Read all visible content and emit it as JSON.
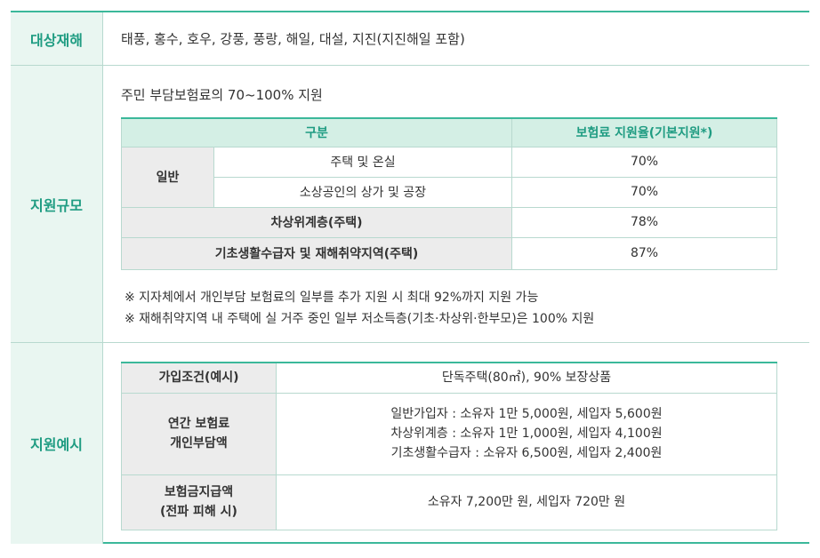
{
  "disasters": {
    "label": "대상재해",
    "value": "태풍, 홍수, 호우, 강풍, 풍랑, 해일, 대설, 지진(지진해일 포함)"
  },
  "support_scale": {
    "label": "지원규모",
    "intro": "주민 부담보험료의 70~100% 지원",
    "table": {
      "header_category": "구분",
      "header_rate": "보험료 지원율(기본지원*)",
      "general_label": "일반",
      "rows": [
        {
          "item": "주택 및 온실",
          "rate": "70%"
        },
        {
          "item": "소상공인의 상가 및 공장",
          "rate": "70%"
        },
        {
          "item": "차상위계층(주택)",
          "rate": "78%"
        },
        {
          "item": "기초생활수급자 및 재해취약지역(주택)",
          "rate": "87%"
        }
      ]
    },
    "notes": [
      "※ 지자체에서 개인부담 보험료의 일부를 추가 지원 시 최대 92%까지 지원 가능",
      "※ 재해취약지역 내 주택에 실 거주 중인 일부 저소득층(기초·차상위·한부모)은 100% 지원"
    ]
  },
  "example": {
    "label": "지원예시",
    "rows": [
      {
        "key": "가입조건(예시)",
        "value_lines": [
          "단독주택(80㎡), 90% 보장상품"
        ]
      },
      {
        "key_lines": [
          "연간 보험료",
          "개인부담액"
        ],
        "value_lines": [
          "일반가입자 : 소유자 1만 5,000원, 세입자 5,600원",
          "차상위계층 : 소유자 1만 1,000원, 세입자 4,100원",
          "기초생활수급자 : 소유자 6,500원, 세입자 2,400원"
        ]
      },
      {
        "key_lines": [
          "보험금지급액",
          "(전파 피해 시)"
        ],
        "value_lines": [
          "소유자 7,200만 원, 세입자 720만 원"
        ]
      }
    ]
  }
}
